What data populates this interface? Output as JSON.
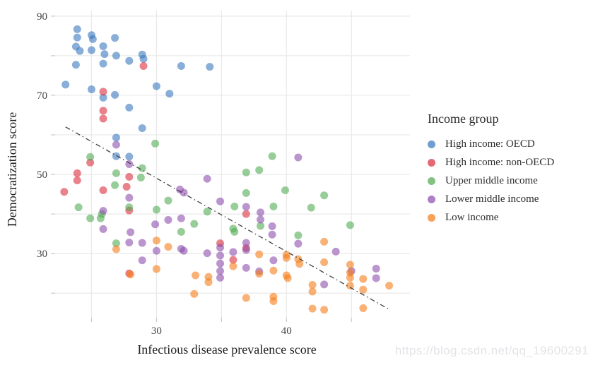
{
  "watermark": "https://blog.csdn.net/qq_19600291",
  "chart_data": {
    "type": "scatter",
    "title": "",
    "xlabel": "Infectious disease prevalence score",
    "ylabel": "Democratization score",
    "legend_title": "Income group",
    "legend_position": "right",
    "grid": true,
    "xlim": [
      22.2,
      49.5
    ],
    "ylim": [
      13.8,
      91.4
    ],
    "x_tick_labels": [
      30,
      40
    ],
    "x_gridlines": [
      25,
      30,
      35,
      40,
      45
    ],
    "y_tick_labels": [
      90,
      70,
      50,
      30
    ],
    "y_gridlines": [
      20,
      30,
      40,
      50,
      60,
      70,
      80,
      90
    ],
    "colors": {
      "grid": "#e9e9e9",
      "tick_mark": "#c9c9c9",
      "tick_label": "#454545",
      "trend": "#3f3f3f"
    },
    "trend_line": {
      "style": "dash-dot",
      "x1": 23.0,
      "y1": 62.0,
      "x2": 47.9,
      "y2": 15.9
    },
    "series": [
      {
        "name": "High income: OECD",
        "color": "#3a78be",
        "points": [
          [
            23.9,
            86.7
          ],
          [
            23.9,
            84.6
          ],
          [
            23.8,
            82.3
          ],
          [
            24.1,
            81.2
          ],
          [
            23.8,
            77.7
          ],
          [
            25,
            85.2
          ],
          [
            25.1,
            84.2
          ],
          [
            25,
            81.4
          ],
          [
            25.9,
            82.4
          ],
          [
            26,
            80.4
          ],
          [
            25.9,
            78
          ],
          [
            26.8,
            84.5
          ],
          [
            26.9,
            80
          ],
          [
            27.9,
            78.7
          ],
          [
            28.9,
            80.3
          ],
          [
            29,
            79.2
          ],
          [
            31.9,
            77.4
          ],
          [
            34.1,
            77.2
          ],
          [
            23,
            72.7
          ],
          [
            25,
            71.5
          ],
          [
            26.8,
            70.1
          ],
          [
            30,
            72.3
          ],
          [
            31,
            70.4
          ],
          [
            25.9,
            69.4
          ],
          [
            27.9,
            66.9
          ],
          [
            28.9,
            61.7
          ],
          [
            26.9,
            59.3
          ],
          [
            26.9,
            54.6
          ],
          [
            27.9,
            54.5
          ]
        ]
      },
      {
        "name": "High income: non-OECD",
        "color": "#da2f3d",
        "points": [
          [
            29,
            77.4
          ],
          [
            25.9,
            70.9
          ],
          [
            25.9,
            66.1
          ],
          [
            25.9,
            64.1
          ],
          [
            24.9,
            53
          ],
          [
            23.9,
            50.3
          ],
          [
            23.9,
            48.5
          ],
          [
            22.9,
            45.6
          ],
          [
            25.9,
            46
          ],
          [
            27.9,
            49.4
          ],
          [
            27.7,
            46.9
          ],
          [
            27.9,
            40.9
          ],
          [
            36.9,
            40
          ],
          [
            35.9,
            28.4
          ],
          [
            36.9,
            31.4
          ],
          [
            27.9,
            25
          ],
          [
            34.9,
            32.6
          ]
        ]
      },
      {
        "name": "Upper middle income",
        "color": "#52ac53",
        "points": [
          [
            24.9,
            54.4
          ],
          [
            29.9,
            57.8
          ],
          [
            28.9,
            51.6
          ],
          [
            26.9,
            50.3
          ],
          [
            28.8,
            49.2
          ],
          [
            26.8,
            47.3
          ],
          [
            24,
            41.7
          ],
          [
            25.8,
            40
          ],
          [
            24.9,
            38.9
          ],
          [
            25.7,
            38.9
          ],
          [
            27.9,
            41.7
          ],
          [
            30,
            41.1
          ],
          [
            30.9,
            43.4
          ],
          [
            31.9,
            35.5
          ],
          [
            32.9,
            37.5
          ],
          [
            33.9,
            40.6
          ],
          [
            36,
            41.9
          ],
          [
            35.9,
            36.3
          ],
          [
            36,
            35.5
          ],
          [
            36.9,
            50.5
          ],
          [
            37.9,
            51.1
          ],
          [
            36.9,
            45.3
          ],
          [
            38.9,
            54.6
          ],
          [
            39,
            41.9
          ],
          [
            38,
            37
          ],
          [
            39.9,
            46
          ],
          [
            41.9,
            41.6
          ],
          [
            42.9,
            44.7
          ],
          [
            40.9,
            34.6
          ],
          [
            44.9,
            37.2
          ],
          [
            26.9,
            32.6
          ]
        ]
      },
      {
        "name": "Lower middle income",
        "color": "#8e4ead",
        "points": [
          [
            26.9,
            57.5
          ],
          [
            27.9,
            52.6
          ],
          [
            27.9,
            44.1
          ],
          [
            25.9,
            40.8
          ],
          [
            25.9,
            36.2
          ],
          [
            28,
            35.4
          ],
          [
            29.9,
            37.4
          ],
          [
            30.9,
            38.5
          ],
          [
            31.8,
            46.2
          ],
          [
            32.1,
            45.4
          ],
          [
            31.9,
            38.9
          ],
          [
            33.9,
            48.9
          ],
          [
            34.9,
            43.2
          ],
          [
            36.9,
            41.8
          ],
          [
            38,
            40.4
          ],
          [
            38,
            38.6
          ],
          [
            38.9,
            36.9
          ],
          [
            38.9,
            34.8
          ],
          [
            40.9,
            54.3
          ],
          [
            40.9,
            32.5
          ],
          [
            42.9,
            22.2
          ],
          [
            43.8,
            30.5
          ],
          [
            45,
            25.6
          ],
          [
            46.9,
            26.2
          ],
          [
            46.9,
            23.8
          ],
          [
            27.9,
            32.8
          ],
          [
            28.9,
            32.7
          ],
          [
            30,
            30.7
          ],
          [
            31.9,
            31.2
          ],
          [
            32.1,
            30.7
          ],
          [
            33.9,
            30.1
          ],
          [
            34.9,
            31.5
          ],
          [
            34.9,
            29.5
          ],
          [
            34.9,
            27.5
          ],
          [
            34.9,
            25.6
          ],
          [
            34.9,
            23.9
          ],
          [
            36.9,
            32.7
          ],
          [
            36.9,
            30.9
          ],
          [
            35.9,
            30.4
          ],
          [
            36.9,
            26.4
          ],
          [
            39,
            28.3
          ],
          [
            37.9,
            25.5
          ],
          [
            28.9,
            28.3
          ]
        ]
      },
      {
        "name": "Low income",
        "color": "#f57d19",
        "points": [
          [
            30,
            33.3
          ],
          [
            26.9,
            31.1
          ],
          [
            30.9,
            31.7
          ],
          [
            30,
            26.1
          ],
          [
            28,
            24.7
          ],
          [
            33,
            24.5
          ],
          [
            34,
            24.1
          ],
          [
            34,
            22.8
          ],
          [
            32.9,
            19.8
          ],
          [
            35.9,
            26.8
          ],
          [
            37.9,
            29.8
          ],
          [
            37.9,
            24.9
          ],
          [
            39,
            25.7
          ],
          [
            40,
            29.7
          ],
          [
            40,
            28.9
          ],
          [
            40,
            24.5
          ],
          [
            40.1,
            23.8
          ],
          [
            40.9,
            28.6
          ],
          [
            41,
            27.4
          ],
          [
            42.9,
            33
          ],
          [
            42.9,
            27.8
          ],
          [
            44.9,
            27.2
          ],
          [
            44.9,
            25.2
          ],
          [
            44.9,
            23.9
          ],
          [
            44.9,
            21.9
          ],
          [
            45.9,
            23.6
          ],
          [
            45.9,
            20.9
          ],
          [
            47.9,
            21.9
          ],
          [
            36.9,
            18.8
          ],
          [
            39,
            19.1
          ],
          [
            39,
            18
          ],
          [
            42,
            22.1
          ],
          [
            42,
            20.4
          ],
          [
            42,
            16.1
          ],
          [
            42.9,
            15.8
          ],
          [
            45.9,
            16.2
          ]
        ]
      }
    ]
  }
}
